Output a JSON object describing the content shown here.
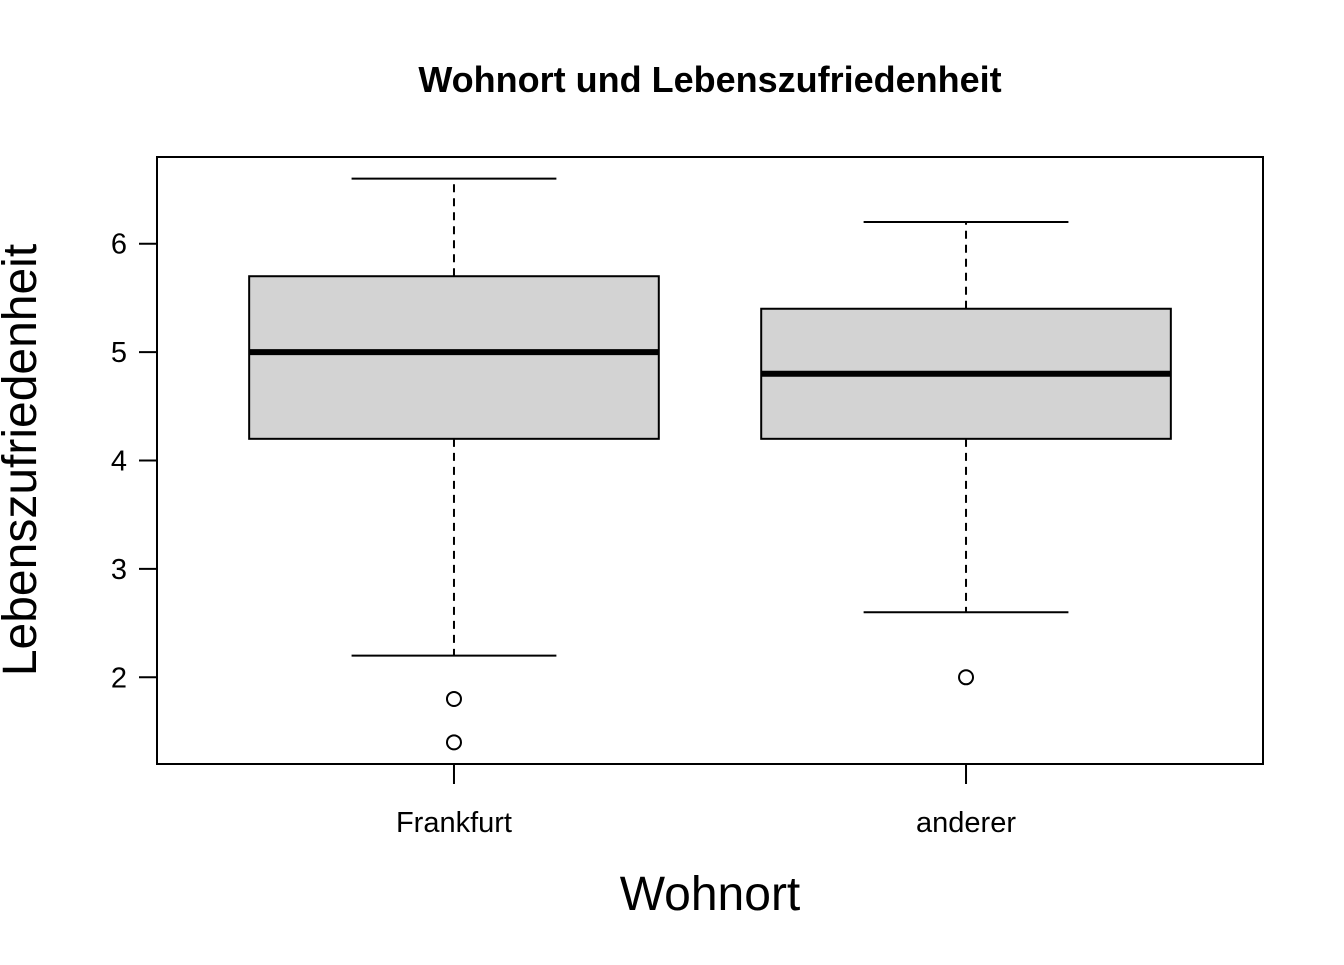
{
  "chart_data": {
    "type": "boxplot",
    "title": "Wohnort und Lebenszufriedenheit",
    "xlabel": "Wohnort",
    "ylabel": "Lebenszufriedenheit",
    "categories": [
      "Frankfurt",
      "anderer"
    ],
    "ylim": [
      1.2,
      6.8
    ],
    "yticks": [
      2,
      3,
      4,
      5,
      6
    ],
    "grid": false,
    "boxes": [
      {
        "category": "Frankfurt",
        "whisker_low": 2.2,
        "q1": 4.2,
        "median": 5.0,
        "q3": 5.7,
        "whisker_high": 6.6,
        "outliers": [
          1.8,
          1.4
        ]
      },
      {
        "category": "anderer",
        "whisker_low": 2.6,
        "q1": 4.2,
        "median": 4.8,
        "q3": 5.4,
        "whisker_high": 6.2,
        "outliers": [
          2.0
        ]
      }
    ],
    "colors": {
      "box_fill": "#d3d3d3",
      "stroke": "#000000",
      "background": "#ffffff"
    }
  }
}
